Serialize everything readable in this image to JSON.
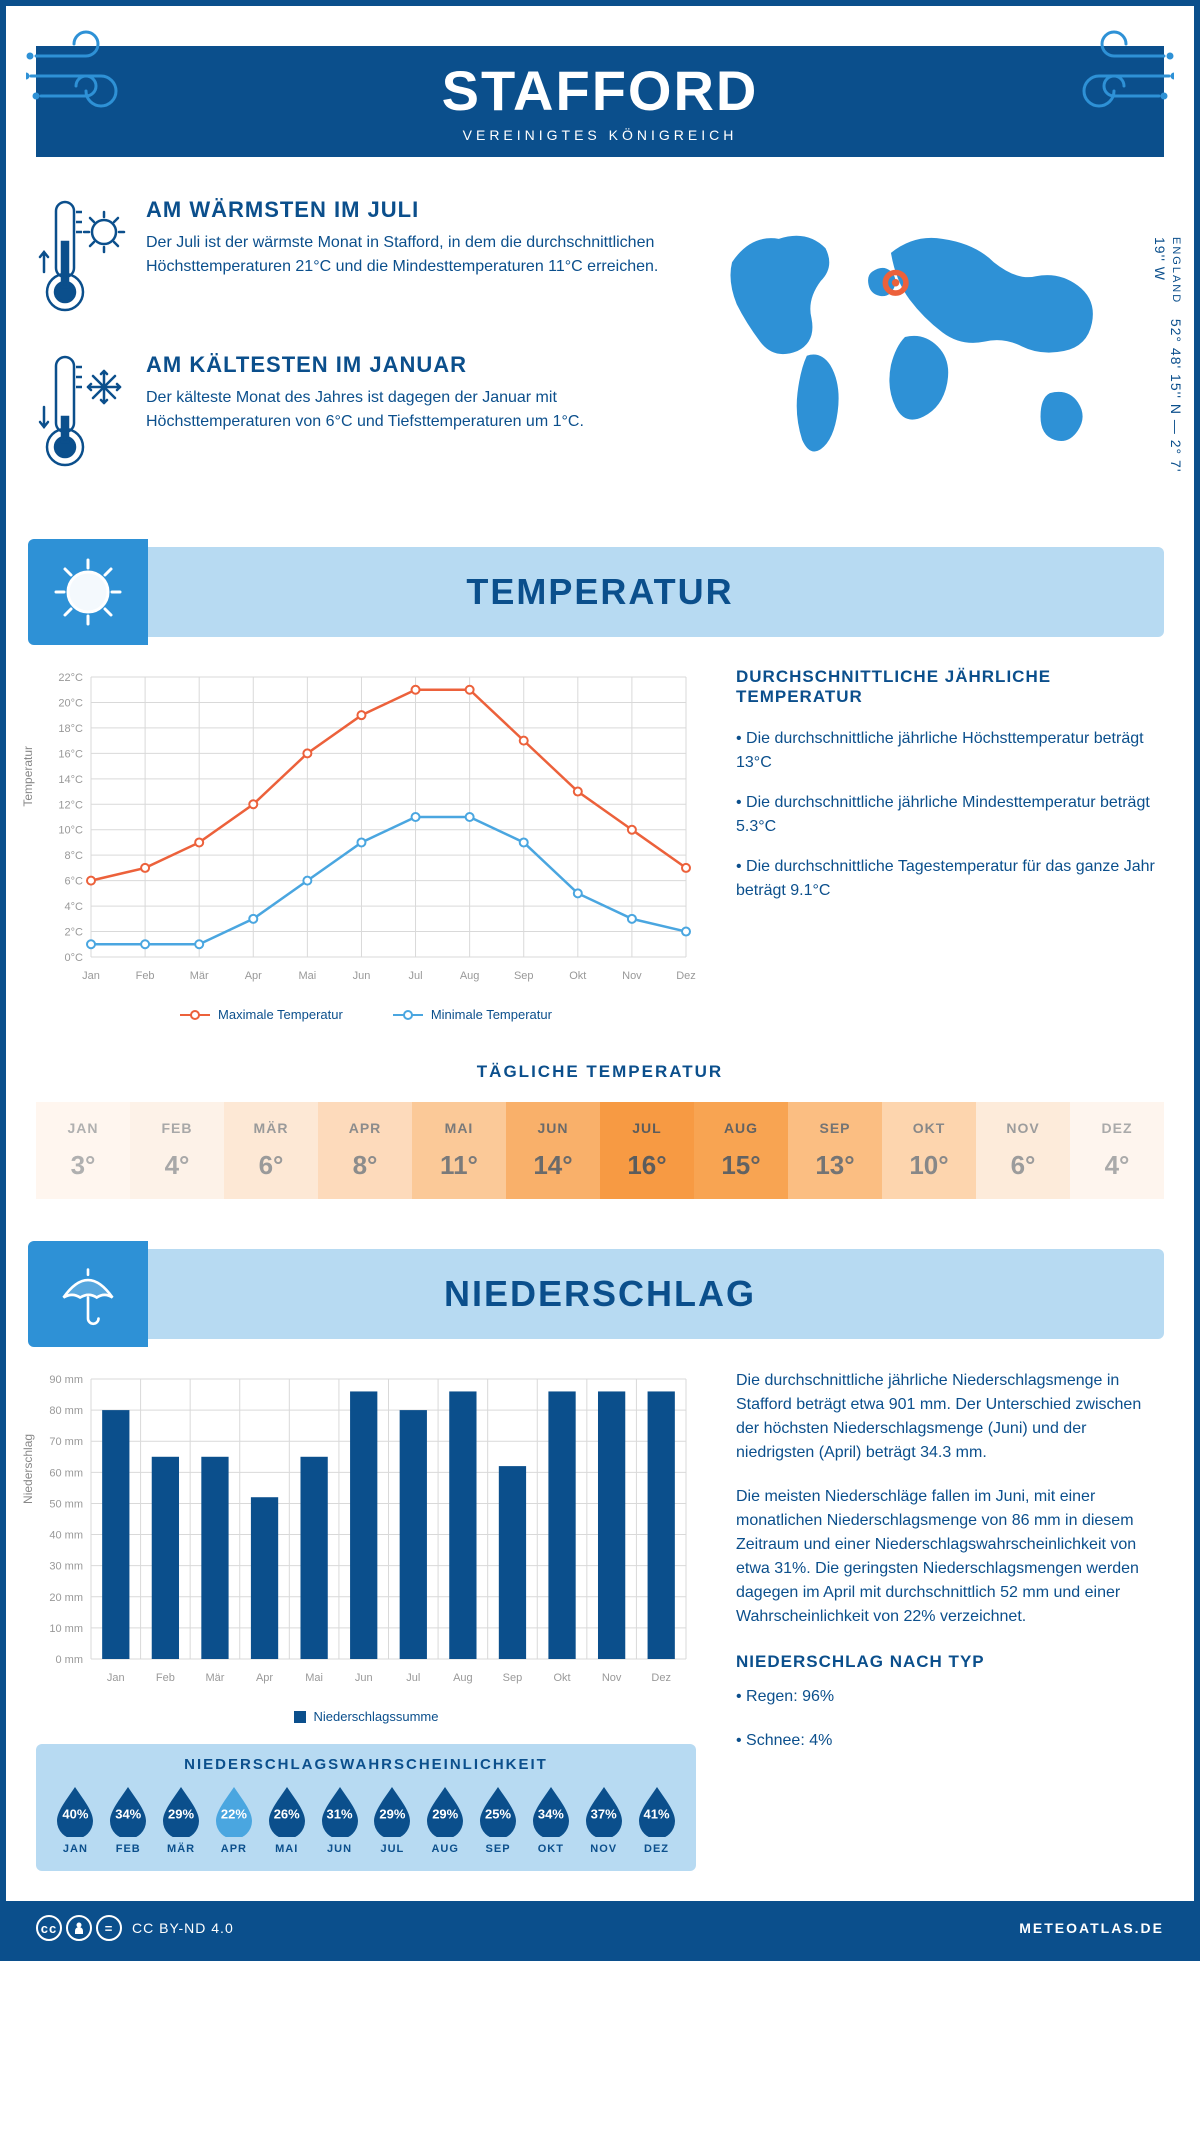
{
  "header": {
    "title": "STAFFORD",
    "subtitle": "VEREINIGTES KÖNIGREICH"
  },
  "coords": {
    "lat": "52° 48' 15'' N — 2° 7' 19'' W",
    "country": "ENGLAND"
  },
  "intro": {
    "warm": {
      "title": "AM WÄRMSTEN IM JULI",
      "text": "Der Juli ist der wärmste Monat in Stafford, in dem die durchschnittlichen Höchsttemperaturen 21°C und die Mindesttemperaturen 11°C erreichen."
    },
    "cold": {
      "title": "AM KÄLTESTEN IM JANUAR",
      "text": "Der kälteste Monat des Jahres ist dagegen der Januar mit Höchsttemperaturen von 6°C und Tiefsttemperaturen um 1°C."
    }
  },
  "temperature": {
    "banner": "TEMPERATUR",
    "chart": {
      "type": "line",
      "months": [
        "Jan",
        "Feb",
        "Mär",
        "Apr",
        "Mai",
        "Jun",
        "Jul",
        "Aug",
        "Sep",
        "Okt",
        "Nov",
        "Dez"
      ],
      "max": [
        6,
        7,
        9,
        12,
        16,
        19,
        21,
        21,
        17,
        13,
        10,
        7
      ],
      "min": [
        1,
        1,
        1,
        3,
        6,
        9,
        11,
        11,
        9,
        5,
        3,
        2
      ],
      "max_color": "#ec613b",
      "min_color": "#4aa6e0",
      "ylim": [
        0,
        22
      ],
      "ytick_step": 2,
      "grid_color": "#d9d9d9",
      "y_axis_title": "Temperatur",
      "legend": {
        "max": "Maximale Temperatur",
        "min": "Minimale Temperatur"
      }
    },
    "sidebar": {
      "title": "DURCHSCHNITTLICHE JÄHRLICHE TEMPERATUR",
      "bullets": [
        "• Die durchschnittliche jährliche Höchsttemperatur beträgt 13°C",
        "• Die durchschnittliche jährliche Mindesttemperatur beträgt 5.3°C",
        "• Die durchschnittliche Tagestemperatur für das ganze Jahr beträgt 9.1°C"
      ]
    },
    "daily": {
      "title": "TÄGLICHE TEMPERATUR",
      "months": [
        "JAN",
        "FEB",
        "MÄR",
        "APR",
        "MAI",
        "JUN",
        "JUL",
        "AUG",
        "SEP",
        "OKT",
        "NOV",
        "DEZ"
      ],
      "values": [
        "3°",
        "4°",
        "6°",
        "8°",
        "11°",
        "14°",
        "16°",
        "15°",
        "13°",
        "10°",
        "6°",
        "4°"
      ],
      "bg_colors": [
        "#fff6ef",
        "#fdf2e8",
        "#fde8d5",
        "#fddabb",
        "#fbc998",
        "#f9b06a",
        "#f79a43",
        "#f8a452",
        "#fbbe82",
        "#fdd5ae",
        "#fdebda",
        "#fef5ee"
      ],
      "text_colors": [
        "#b0b0b0",
        "#a8a8a8",
        "#9a9a9a",
        "#8c8c8c",
        "#7a7a7a",
        "#6a6a6a",
        "#5c5c5c",
        "#626262",
        "#747474",
        "#888888",
        "#9c9c9c",
        "#aaaaaa"
      ]
    }
  },
  "precipitation": {
    "banner": "NIEDERSCHLAG",
    "chart": {
      "type": "bar",
      "months": [
        "Jan",
        "Feb",
        "Mär",
        "Apr",
        "Mai",
        "Jun",
        "Jul",
        "Aug",
        "Sep",
        "Okt",
        "Nov",
        "Dez"
      ],
      "values": [
        80,
        65,
        65,
        52,
        65,
        86,
        80,
        86,
        62,
        86,
        86,
        86
      ],
      "bar_color": "#0b4f8c",
      "ylim": [
        0,
        90
      ],
      "ytick_step": 10,
      "grid_color": "#d9d9d9",
      "y_axis_title": "Niederschlag",
      "legend": "Niederschlagssumme"
    },
    "text1": "Die durchschnittliche jährliche Niederschlagsmenge in Stafford beträgt etwa 901 mm. Der Unterschied zwischen der höchsten Niederschlagsmenge (Juni) und der niedrigsten (April) beträgt 34.3 mm.",
    "text2": "Die meisten Niederschläge fallen im Juni, mit einer monatlichen Niederschlagsmenge von 86 mm in diesem Zeitraum und einer Niederschlagswahrscheinlichkeit von etwa 31%. Die geringsten Niederschlagsmengen werden dagegen im April mit durchschnittlich 52 mm und einer Wahrscheinlichkeit von 22% verzeichnet.",
    "by_type": {
      "title": "NIEDERSCHLAG NACH TYP",
      "items": [
        "• Regen: 96%",
        "• Schnee: 4%"
      ]
    },
    "probability": {
      "title": "NIEDERSCHLAGSWAHRSCHEINLICHKEIT",
      "months": [
        "JAN",
        "FEB",
        "MÄR",
        "APR",
        "MAI",
        "JUN",
        "JUL",
        "AUG",
        "SEP",
        "OKT",
        "NOV",
        "DEZ"
      ],
      "values": [
        "40%",
        "34%",
        "29%",
        "22%",
        "26%",
        "31%",
        "29%",
        "29%",
        "25%",
        "34%",
        "37%",
        "41%"
      ],
      "drop_colors": [
        "#0b4f8c",
        "#0b4f8c",
        "#0b4f8c",
        "#4aa6e0",
        "#0b4f8c",
        "#0b4f8c",
        "#0b4f8c",
        "#0b4f8c",
        "#0b4f8c",
        "#0b4f8c",
        "#0b4f8c",
        "#0b4f8c"
      ]
    }
  },
  "footer": {
    "license": "CC BY-ND 4.0",
    "site": "METEOATLAS.DE"
  },
  "colors": {
    "primary": "#0b4f8c",
    "light_blue": "#b7daf2",
    "mid_blue": "#2e91d6",
    "accent_blue": "#4aa6e0",
    "orange": "#ec613b"
  }
}
